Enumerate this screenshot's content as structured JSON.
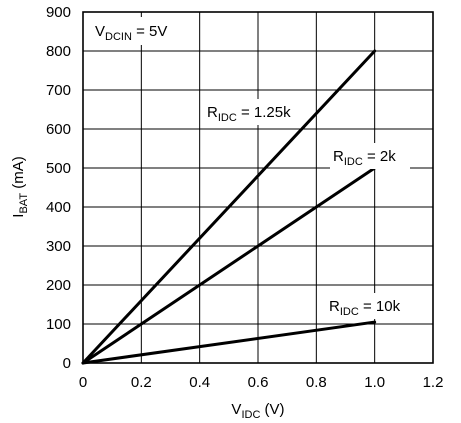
{
  "chart_data": {
    "type": "line",
    "xlabel": {
      "main": "V",
      "sub": "IDC",
      "suffix": " (V)"
    },
    "ylabel": {
      "main": "I",
      "sub": "BAT",
      "suffix": " (mA)"
    },
    "xlim": [
      0,
      1.2
    ],
    "ylim": [
      0,
      900
    ],
    "x_ticks": [
      "0",
      "0.2",
      "0.4",
      "0.6",
      "0.8",
      "1.0",
      "1.2"
    ],
    "y_ticks": [
      "0",
      "100",
      "200",
      "300",
      "400",
      "500",
      "600",
      "700",
      "800",
      "900"
    ],
    "x_tick_values": [
      0,
      0.2,
      0.4,
      0.6,
      0.8,
      1.0,
      1.2
    ],
    "y_tick_values": [
      0,
      100,
      200,
      300,
      400,
      500,
      600,
      700,
      800,
      900
    ],
    "grid": true,
    "annotation": {
      "main": "V",
      "sub": "DCIN",
      "suffix": " = 5V"
    },
    "series": [
      {
        "label_main": "R",
        "label_sub": "IDC",
        "label_suffix": " = 1.25k",
        "x": [
          0,
          1.0
        ],
        "y": [
          0,
          800
        ]
      },
      {
        "label_main": "R",
        "label_sub": "IDC",
        "label_suffix": " = 2k",
        "x": [
          0,
          1.0
        ],
        "y": [
          0,
          500
        ]
      },
      {
        "label_main": "R",
        "label_sub": "IDC",
        "label_suffix": " = 10k",
        "x": [
          0,
          1.0
        ],
        "y": [
          0,
          105
        ]
      }
    ]
  }
}
